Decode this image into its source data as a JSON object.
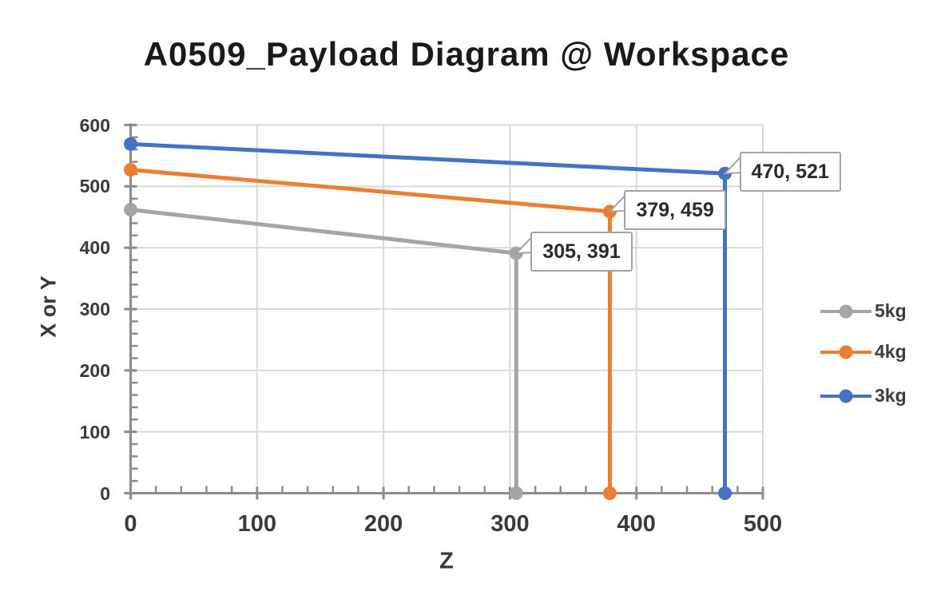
{
  "chart_data": {
    "type": "line",
    "title": "A0509_Payload Diagram @ Workspace",
    "xlabel": "Z",
    "ylabel": "X or Y",
    "xlim": [
      0,
      500
    ],
    "ylim": [
      0,
      600
    ],
    "x_ticks": [
      0,
      100,
      200,
      300,
      400,
      500
    ],
    "y_ticks": [
      0,
      100,
      200,
      300,
      400,
      500,
      600
    ],
    "minor_tick_step": 20,
    "grid": true,
    "legend_position": "right",
    "style": {
      "axis_color": "#8c8c8c",
      "grid_color": "#d9d9d9",
      "callout_border": "#a3a3a3",
      "callout_text": "#2b2b2b",
      "tick_label_color": "#3a3a3a",
      "title_color": "#1a1a1a",
      "background": "#ffffff"
    },
    "series": [
      {
        "name": "5kg",
        "color": "#A5A5A5",
        "points": [
          [
            0,
            462
          ],
          [
            305,
            391
          ],
          [
            305,
            0
          ]
        ]
      },
      {
        "name": "4kg",
        "color": "#ED7D31",
        "points": [
          [
            0,
            527
          ],
          [
            379,
            459
          ],
          [
            379,
            0
          ]
        ]
      },
      {
        "name": "3kg",
        "color": "#4472C4",
        "points": [
          [
            0,
            569
          ],
          [
            470,
            521
          ],
          [
            470,
            0
          ]
        ]
      }
    ],
    "annotations": [
      {
        "series": "5kg",
        "x": 305,
        "y": 391,
        "label": "305, 391"
      },
      {
        "series": "4kg",
        "x": 379,
        "y": 459,
        "label": "379, 459"
      },
      {
        "series": "3kg",
        "x": 470,
        "y": 521,
        "label": "470, 521"
      }
    ]
  }
}
